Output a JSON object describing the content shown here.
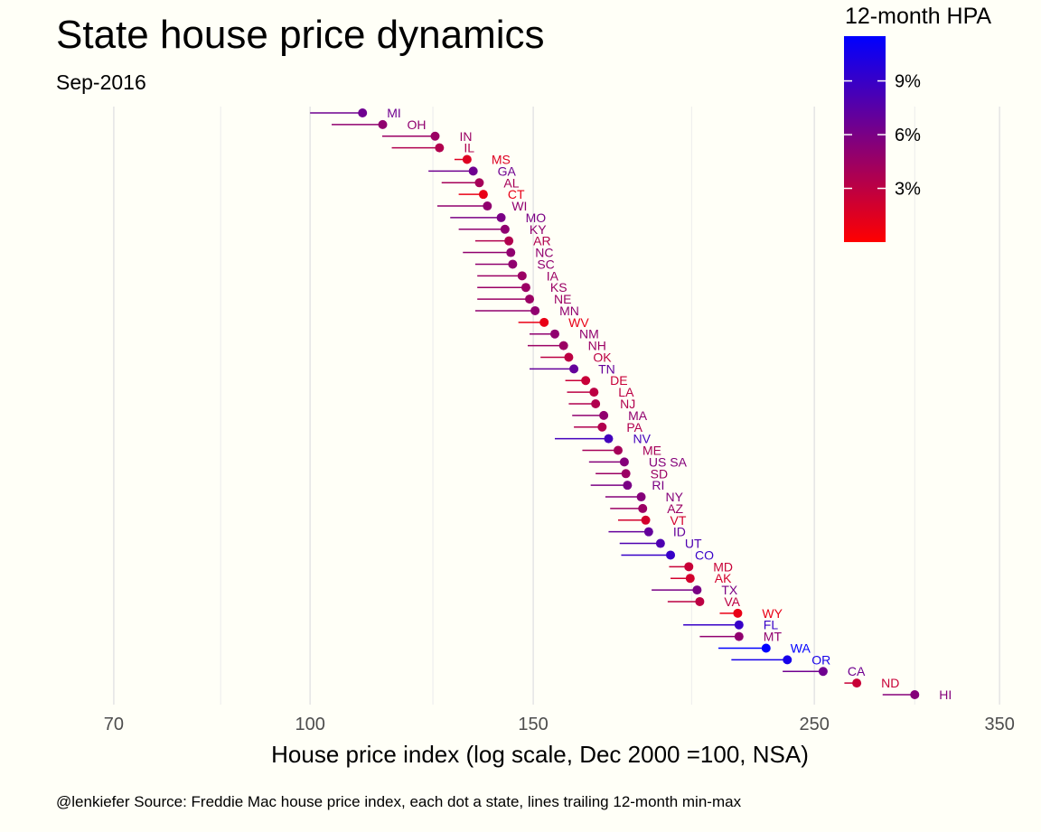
{
  "chart_data": {
    "type": "scatter",
    "title": "State house price dynamics",
    "subtitle": "Sep-2016",
    "xlabel": "House price index (log scale, Dec 2000 =100, NSA)",
    "caption": "@lenkiefer Source: Freddie Mac house price index, each dot a state, lines trailing 12-month min-max",
    "x_scale": "log",
    "xlim": [
      62,
      370
    ],
    "x_ticks": [
      70,
      100,
      150,
      250,
      350
    ],
    "x_minor_ticks": [
      85,
      125,
      200,
      300
    ],
    "grid": "vertical",
    "legend": {
      "title": "12-month HPA",
      "position": "top-right",
      "ticks": [
        "3%",
        "6%",
        "9%"
      ],
      "tick_values": [
        3,
        6,
        9
      ],
      "range": [
        0,
        11.5
      ],
      "low_color": "#ff0000",
      "high_color": "#0000ff"
    },
    "colors": {
      "background": "#fffff7",
      "grid": "#e6e6e6"
    },
    "points": [
      {
        "state": "MI",
        "value": 110.0,
        "min": 100.0,
        "hpa": 6.5
      },
      {
        "state": "OH",
        "value": 114.1,
        "min": 104.0,
        "hpa": 5.0
      },
      {
        "state": "IN",
        "value": 125.5,
        "min": 114.0,
        "hpa": 4.5
      },
      {
        "state": "IL",
        "value": 126.5,
        "min": 116.0,
        "hpa": 3.5
      },
      {
        "state": "MS",
        "value": 133.0,
        "min": 130.0,
        "hpa": 1.5
      },
      {
        "state": "GA",
        "value": 134.5,
        "min": 124.0,
        "hpa": 6.5
      },
      {
        "state": "AL",
        "value": 136.0,
        "min": 127.0,
        "hpa": 4.0
      },
      {
        "state": "CT",
        "value": 137.0,
        "min": 131.0,
        "hpa": 1.0
      },
      {
        "state": "WI",
        "value": 138.0,
        "min": 126.0,
        "hpa": 5.0
      },
      {
        "state": "MO",
        "value": 141.5,
        "min": 129.0,
        "hpa": 6.0
      },
      {
        "state": "KY",
        "value": 142.5,
        "min": 131.0,
        "hpa": 5.0
      },
      {
        "state": "AR",
        "value": 143.5,
        "min": 135.0,
        "hpa": 3.5
      },
      {
        "state": "NC",
        "value": 144.0,
        "min": 132.0,
        "hpa": 5.0
      },
      {
        "state": "SC",
        "value": 144.5,
        "min": 135.0,
        "hpa": 5.0
      },
      {
        "state": "IA",
        "value": 147.0,
        "min": 135.5,
        "hpa": 4.5
      },
      {
        "state": "KS",
        "value": 148.0,
        "min": 135.5,
        "hpa": 4.5
      },
      {
        "state": "NE",
        "value": 149.0,
        "min": 135.5,
        "hpa": 4.5
      },
      {
        "state": "MN",
        "value": 150.5,
        "min": 135.0,
        "hpa": 5.0
      },
      {
        "state": "WV",
        "value": 153.0,
        "min": 146.0,
        "hpa": 1.0
      },
      {
        "state": "NM",
        "value": 156.0,
        "min": 149.0,
        "hpa": 5.0
      },
      {
        "state": "NH",
        "value": 158.5,
        "min": 148.5,
        "hpa": 4.5
      },
      {
        "state": "OK",
        "value": 160.0,
        "min": 152.0,
        "hpa": 3.0
      },
      {
        "state": "TN",
        "value": 161.5,
        "min": 149.0,
        "hpa": 7.0
      },
      {
        "state": "DE",
        "value": 165.0,
        "min": 159.0,
        "hpa": 2.5
      },
      {
        "state": "LA",
        "value": 167.5,
        "min": 159.5,
        "hpa": 3.0
      },
      {
        "state": "NJ",
        "value": 168.0,
        "min": 160.0,
        "hpa": 3.5
      },
      {
        "state": "MA",
        "value": 170.5,
        "min": 161.0,
        "hpa": 5.0
      },
      {
        "state": "PA",
        "value": 170.0,
        "min": 161.5,
        "hpa": 3.5
      },
      {
        "state": "NV",
        "value": 172.0,
        "min": 156.0,
        "hpa": 8.5
      },
      {
        "state": "ME",
        "value": 175.0,
        "min": 164.0,
        "hpa": 4.0
      },
      {
        "state": "US SA",
        "value": 177.0,
        "min": 166.0,
        "hpa": 5.5
      },
      {
        "state": "SD",
        "value": 177.5,
        "min": 168.0,
        "hpa": 4.5
      },
      {
        "state": "RI",
        "value": 178.0,
        "min": 166.5,
        "hpa": 6.0
      },
      {
        "state": "NY",
        "value": 182.5,
        "min": 171.0,
        "hpa": 5.5
      },
      {
        "state": "AZ",
        "value": 183.0,
        "min": 172.5,
        "hpa": 4.5
      },
      {
        "state": "VT",
        "value": 184.0,
        "min": 175.0,
        "hpa": 2.0
      },
      {
        "state": "ID",
        "value": 185.0,
        "min": 172.0,
        "hpa": 7.0
      },
      {
        "state": "UT",
        "value": 189.0,
        "min": 175.5,
        "hpa": 8.0
      },
      {
        "state": "CO",
        "value": 192.5,
        "min": 176.0,
        "hpa": 9.0
      },
      {
        "state": "MD",
        "value": 199.0,
        "min": 192.0,
        "hpa": 2.5
      },
      {
        "state": "AK",
        "value": 199.5,
        "min": 192.5,
        "hpa": 2.0
      },
      {
        "state": "TX",
        "value": 202.0,
        "min": 186.0,
        "hpa": 6.0
      },
      {
        "state": "VA",
        "value": 203.0,
        "min": 191.5,
        "hpa": 3.0
      },
      {
        "state": "WY",
        "value": 217.5,
        "min": 210.5,
        "hpa": 1.0
      },
      {
        "state": "FL",
        "value": 218.0,
        "min": 197.0,
        "hpa": 9.0
      },
      {
        "state": "MT",
        "value": 218.0,
        "min": 203.0,
        "hpa": 5.0
      },
      {
        "state": "WA",
        "value": 229.0,
        "min": 210.0,
        "hpa": 11.5
      },
      {
        "state": "OR",
        "value": 238.0,
        "min": 215.0,
        "hpa": 10.5
      },
      {
        "state": "CA",
        "value": 254.0,
        "min": 236.0,
        "hpa": 6.5
      },
      {
        "state": "ND",
        "value": 270.0,
        "min": 264.0,
        "hpa": 2.5
      },
      {
        "state": "HI",
        "value": 300.0,
        "min": 283.0,
        "hpa": 5.5
      }
    ]
  }
}
